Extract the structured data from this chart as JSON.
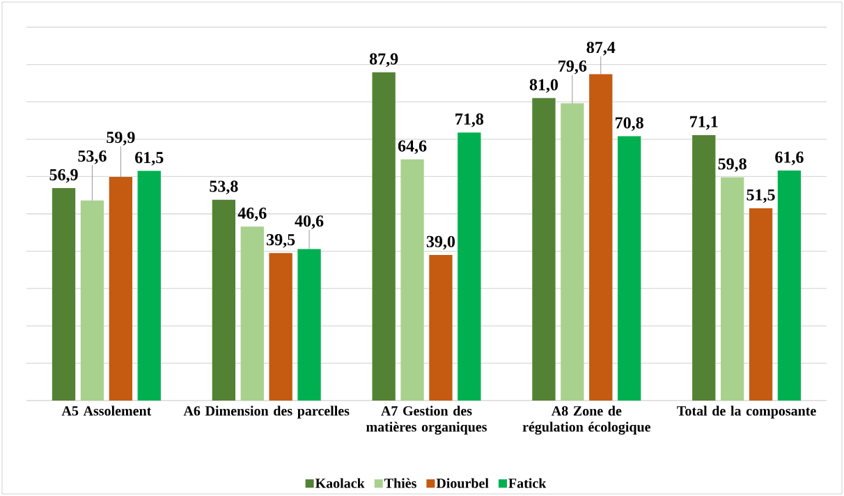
{
  "chart_data": {
    "type": "bar",
    "categories": [
      "A5 Assolement",
      "A6 Dimension des parcelles",
      "A7 Gestion des matières organiques",
      "A8 Zone de régulation écologique",
      "Total de la composante"
    ],
    "series": [
      {
        "name": "Kaolack",
        "color": "#548235",
        "values": [
          56.9,
          53.8,
          87.9,
          81.0,
          71.1
        ],
        "value_labels": [
          "56,9",
          "53,8",
          "87,9",
          "81,0",
          "71,1"
        ]
      },
      {
        "name": "Thiès",
        "color": "#a9d18e",
        "values": [
          53.6,
          46.6,
          64.6,
          79.6,
          59.8
        ],
        "value_labels": [
          "53,6",
          "46,6",
          "64,6",
          "79,6",
          "59,8"
        ]
      },
      {
        "name": "Diourbel",
        "color": "#c55a11",
        "values": [
          59.9,
          39.5,
          39.0,
          87.4,
          51.5
        ],
        "value_labels": [
          "59,9",
          "39,5",
          "39,0",
          "87,4",
          "51,5"
        ]
      },
      {
        "name": "Fatick",
        "color": "#00b050",
        "values": [
          61.5,
          40.6,
          71.8,
          70.8,
          61.6
        ],
        "value_labels": [
          "61,5",
          "40,6",
          "71,8",
          "70,8",
          "61,6"
        ]
      }
    ],
    "ylim": [
      0,
      100
    ],
    "yticks": [
      {
        "value": 0,
        "label": null
      },
      {
        "value": 10,
        "label": null
      },
      {
        "value": 20,
        "label": null
      },
      {
        "value": 30,
        "label": null
      },
      {
        "value": 40,
        "label": null
      },
      {
        "value": 50,
        "label": null
      },
      {
        "value": 60,
        "label": null
      },
      {
        "value": 70,
        "label": null
      },
      {
        "value": 80,
        "label": null
      },
      {
        "value": 90,
        "label": null
      },
      {
        "value": 100,
        "label": null
      }
    ],
    "tick_labels": "x",
    "grid": "y",
    "legend": "bottom"
  }
}
